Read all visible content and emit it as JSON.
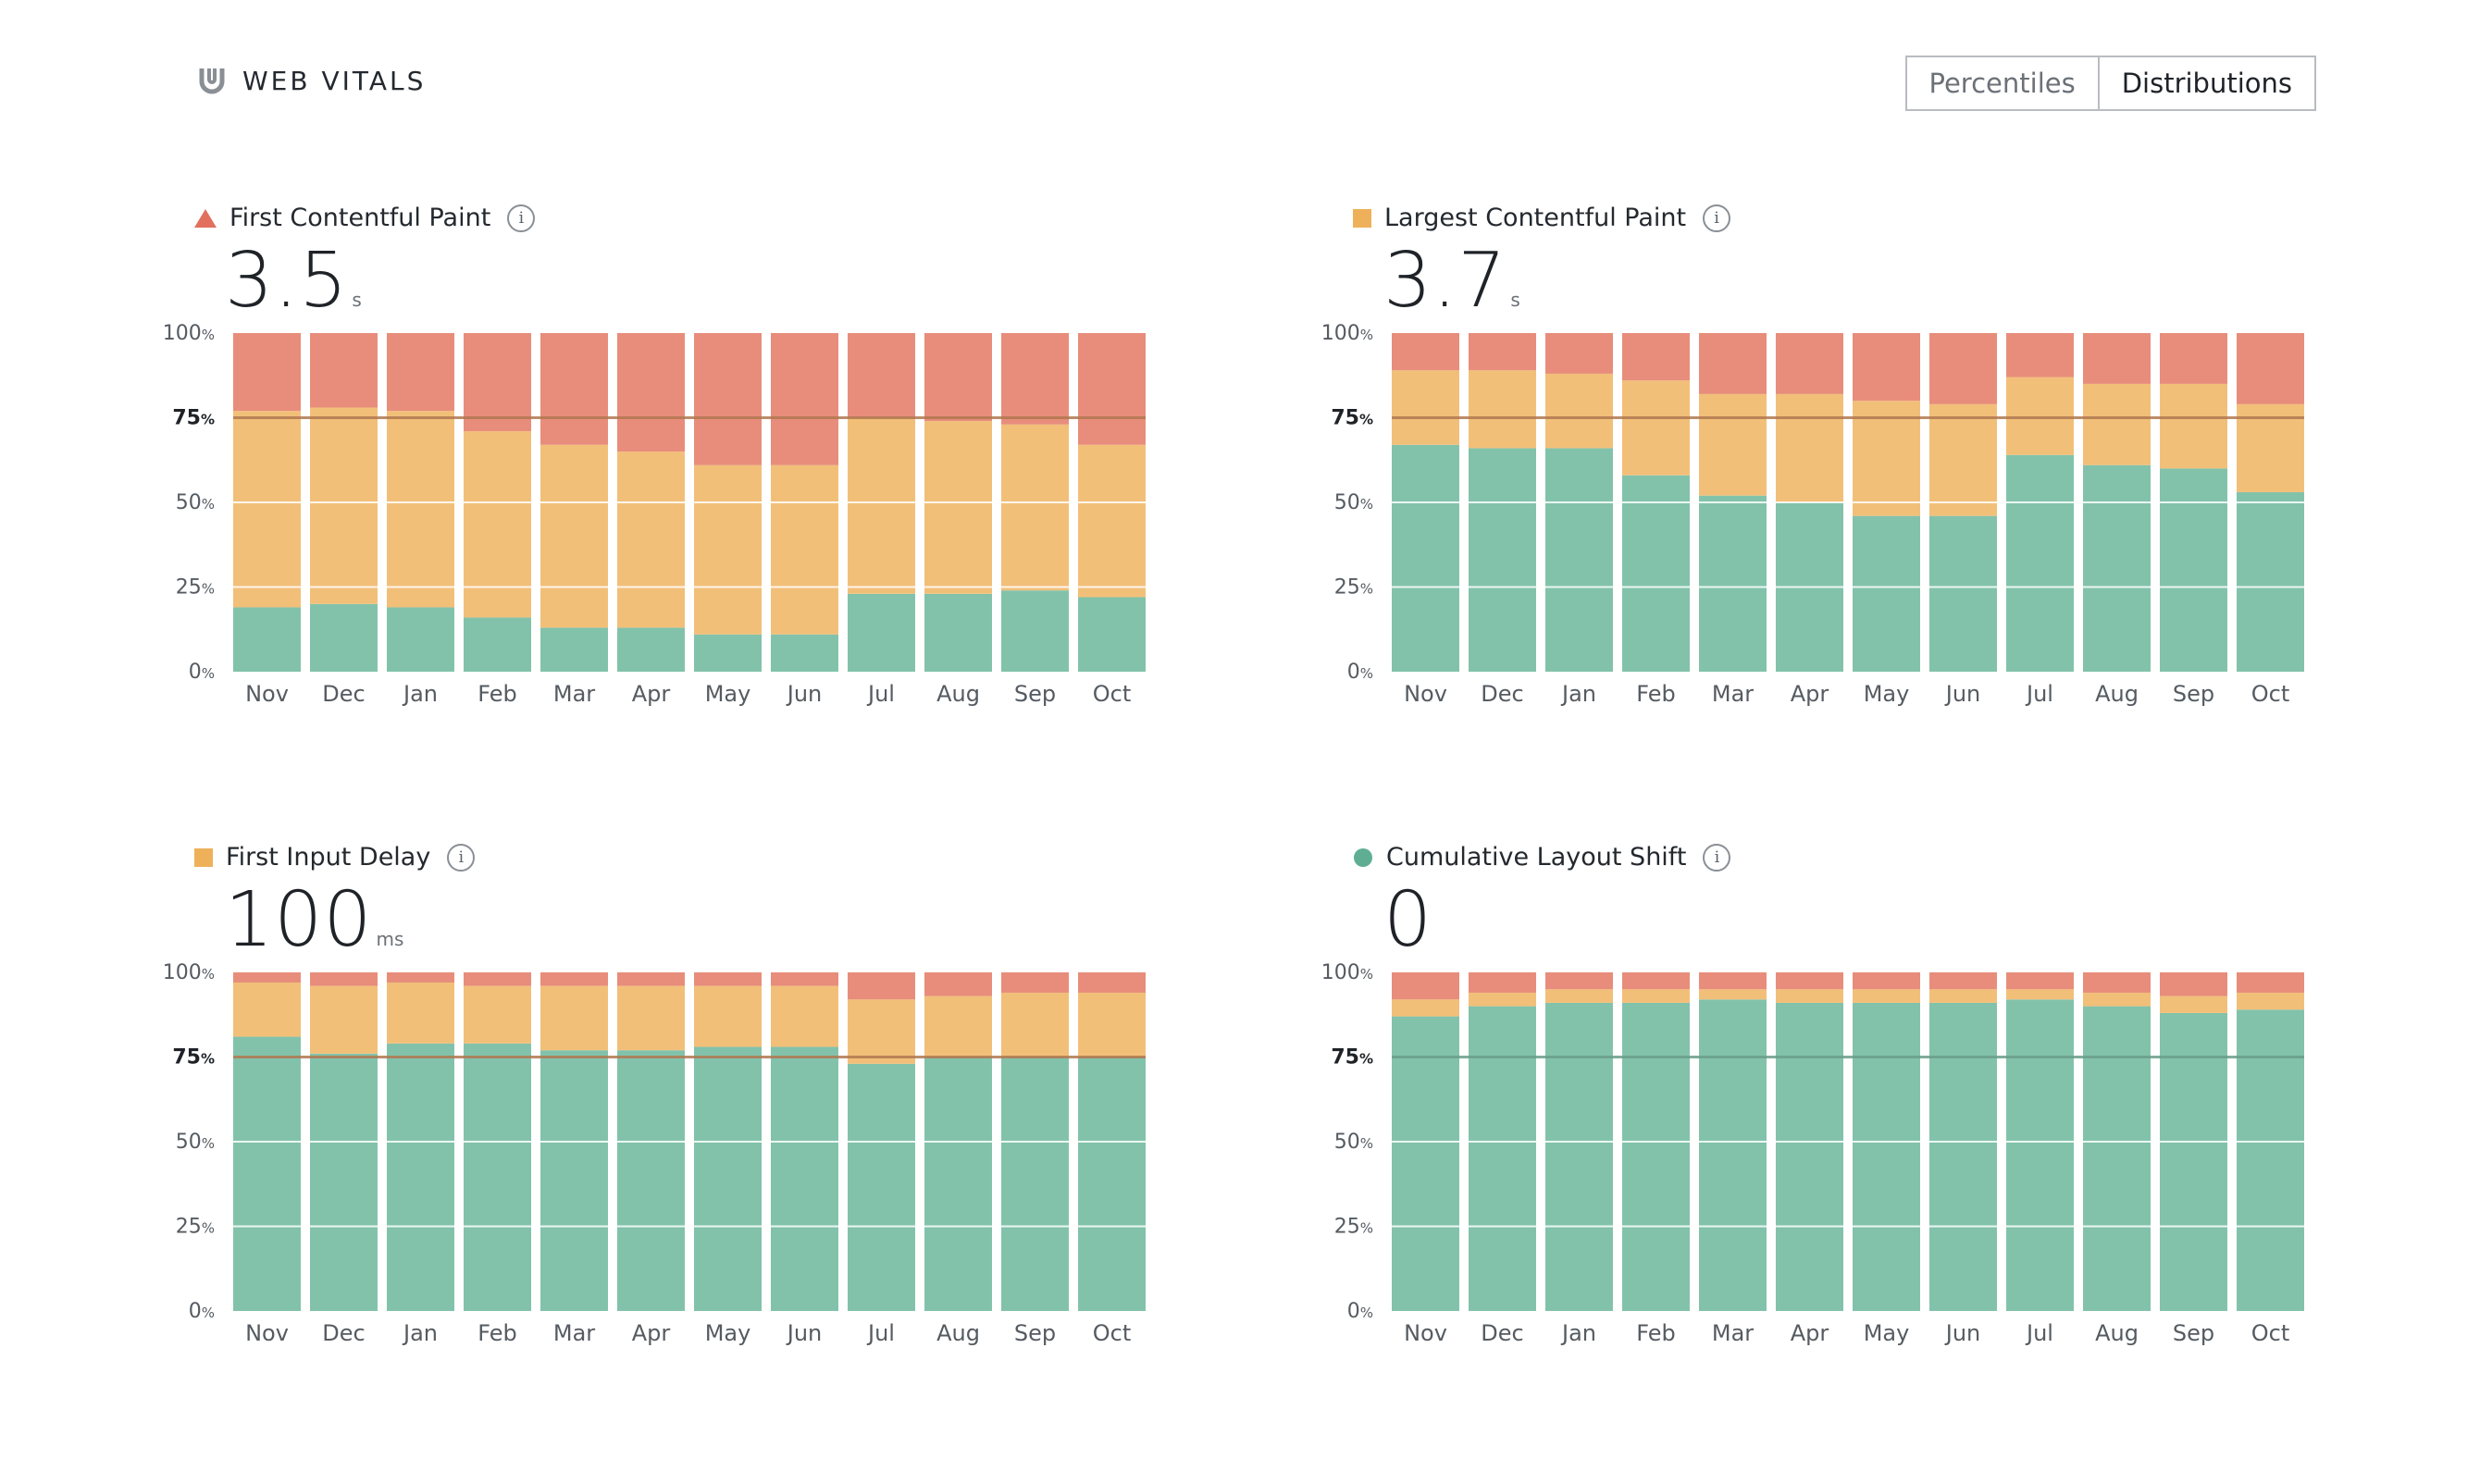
{
  "header": {
    "title": "WEB VITALS"
  },
  "toggle": {
    "percentiles": "Percentiles",
    "distributions": "Distributions"
  },
  "colors": {
    "good": "#82c2ab",
    "ni": "#f2bf79",
    "poor": "#e88d7b",
    "threshold_good": "#6a9e8b",
    "threshold_ni": "#b07850"
  },
  "chart_data": [
    {
      "type": "bar",
      "title": "First Contentful Paint",
      "value": "3.5",
      "unit": "s",
      "marker": "triangle",
      "status": "poor",
      "categories": [
        "Nov",
        "Dec",
        "Jan",
        "Feb",
        "Mar",
        "Apr",
        "May",
        "Jun",
        "Jul",
        "Aug",
        "Sep",
        "Oct"
      ],
      "series": [
        {
          "name": "good",
          "values": [
            19,
            20,
            19,
            16,
            13,
            13,
            11,
            11,
            23,
            23,
            24,
            22
          ]
        },
        {
          "name": "needs-improvement",
          "values": [
            58,
            58,
            58,
            55,
            54,
            52,
            50,
            50,
            52,
            51,
            49,
            45
          ]
        },
        {
          "name": "poor",
          "values": [
            23,
            22,
            23,
            29,
            33,
            35,
            39,
            39,
            25,
            26,
            27,
            33
          ]
        }
      ],
      "ylim": [
        0,
        100
      ],
      "yticks": [
        "0",
        "25",
        "50",
        "75",
        "100"
      ]
    },
    {
      "type": "bar",
      "title": "Largest Contentful Paint",
      "value": "3.7",
      "unit": "s",
      "marker": "square",
      "status": "ni",
      "categories": [
        "Nov",
        "Dec",
        "Jan",
        "Feb",
        "Mar",
        "Apr",
        "May",
        "Jun",
        "Jul",
        "Aug",
        "Sep",
        "Oct"
      ],
      "series": [
        {
          "name": "good",
          "values": [
            67,
            66,
            66,
            58,
            52,
            50,
            46,
            46,
            64,
            61,
            60,
            53
          ]
        },
        {
          "name": "needs-improvement",
          "values": [
            22,
            23,
            22,
            28,
            30,
            32,
            34,
            33,
            23,
            24,
            25,
            26
          ]
        },
        {
          "name": "poor",
          "values": [
            11,
            11,
            12,
            14,
            18,
            18,
            20,
            21,
            13,
            15,
            15,
            21
          ]
        }
      ],
      "ylim": [
        0,
        100
      ],
      "yticks": [
        "0",
        "25",
        "50",
        "75",
        "100"
      ]
    },
    {
      "type": "bar",
      "title": "First Input Delay",
      "value": "100",
      "unit": "ms",
      "marker": "square",
      "status": "ni",
      "categories": [
        "Nov",
        "Dec",
        "Jan",
        "Feb",
        "Mar",
        "Apr",
        "May",
        "Jun",
        "Jul",
        "Aug",
        "Sep",
        "Oct"
      ],
      "series": [
        {
          "name": "good",
          "values": [
            81,
            76,
            79,
            79,
            77,
            77,
            78,
            78,
            73,
            75,
            75,
            75
          ]
        },
        {
          "name": "needs-improvement",
          "values": [
            16,
            20,
            18,
            17,
            19,
            19,
            18,
            18,
            19,
            18,
            19,
            19
          ]
        },
        {
          "name": "poor",
          "values": [
            3,
            4,
            3,
            4,
            4,
            4,
            4,
            4,
            8,
            7,
            6,
            6
          ]
        }
      ],
      "ylim": [
        0,
        100
      ],
      "yticks": [
        "0",
        "25",
        "50",
        "75",
        "100"
      ]
    },
    {
      "type": "bar",
      "title": "Cumulative Layout Shift",
      "value": "0",
      "unit": "",
      "marker": "circle",
      "status": "good",
      "categories": [
        "Nov",
        "Dec",
        "Jan",
        "Feb",
        "Mar",
        "Apr",
        "May",
        "Jun",
        "Jul",
        "Aug",
        "Sep",
        "Oct"
      ],
      "series": [
        {
          "name": "good",
          "values": [
            87,
            90,
            91,
            91,
            92,
            91,
            91,
            91,
            92,
            90,
            88,
            89
          ]
        },
        {
          "name": "needs-improvement",
          "values": [
            5,
            4,
            4,
            4,
            3,
            4,
            4,
            4,
            3,
            4,
            5,
            5
          ]
        },
        {
          "name": "poor",
          "values": [
            8,
            6,
            5,
            5,
            5,
            5,
            5,
            5,
            5,
            6,
            7,
            6
          ]
        }
      ],
      "ylim": [
        0,
        100
      ],
      "yticks": [
        "0",
        "25",
        "50",
        "75",
        "100"
      ]
    }
  ]
}
